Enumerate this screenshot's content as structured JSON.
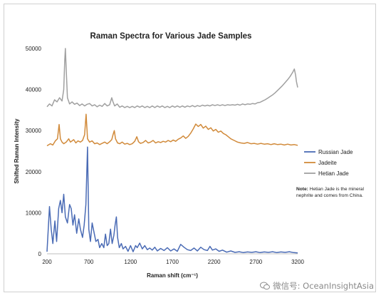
{
  "chart_data": {
    "type": "line",
    "title": "Raman Spectra for Various Jade Samples",
    "xlabel": "Raman shift (cm⁻¹)",
    "ylabel": "Shifted Raman Intensity",
    "xlim": [
      200,
      3200
    ],
    "ylim": [
      0,
      50000
    ],
    "xticks": [
      "200",
      "700",
      "1200",
      "1700",
      "2200",
      "2700",
      "3200"
    ],
    "yticks": [
      "0",
      "10000",
      "20000",
      "30000",
      "40000",
      "50000"
    ],
    "grid": false,
    "legend_position": "right",
    "series": [
      {
        "name": "Russian Jade",
        "color": "#4a6bb5",
        "points": [
          [
            200,
            500
          ],
          [
            230,
            11500
          ],
          [
            250,
            6000
          ],
          [
            270,
            2500
          ],
          [
            295,
            8000
          ],
          [
            315,
            3000
          ],
          [
            340,
            11000
          ],
          [
            360,
            13000
          ],
          [
            380,
            10000
          ],
          [
            400,
            14500
          ],
          [
            420,
            9000
          ],
          [
            445,
            7500
          ],
          [
            470,
            12000
          ],
          [
            490,
            11000
          ],
          [
            510,
            7000
          ],
          [
            530,
            9500
          ],
          [
            555,
            5000
          ],
          [
            580,
            8500
          ],
          [
            600,
            6000
          ],
          [
            625,
            4000
          ],
          [
            645,
            7000
          ],
          [
            665,
            12000
          ],
          [
            685,
            26000
          ],
          [
            700,
            6000
          ],
          [
            720,
            3000
          ],
          [
            740,
            7500
          ],
          [
            760,
            5500
          ],
          [
            785,
            3000
          ],
          [
            810,
            3500
          ],
          [
            830,
            1500
          ],
          [
            855,
            2500
          ],
          [
            880,
            1500
          ],
          [
            900,
            4800
          ],
          [
            920,
            2000
          ],
          [
            940,
            2500
          ],
          [
            960,
            6000
          ],
          [
            980,
            2500
          ],
          [
            1000,
            4500
          ],
          [
            1015,
            7000
          ],
          [
            1030,
            9000
          ],
          [
            1045,
            4000
          ],
          [
            1065,
            1500
          ],
          [
            1090,
            2500
          ],
          [
            1110,
            1200
          ],
          [
            1140,
            1800
          ],
          [
            1170,
            600
          ],
          [
            1200,
            2000
          ],
          [
            1230,
            500
          ],
          [
            1260,
            2000
          ],
          [
            1280,
            1500
          ],
          [
            1310,
            2600
          ],
          [
            1340,
            1200
          ],
          [
            1370,
            2000
          ],
          [
            1400,
            1000
          ],
          [
            1430,
            1400
          ],
          [
            1460,
            900
          ],
          [
            1490,
            1600
          ],
          [
            1520,
            700
          ],
          [
            1560,
            1300
          ],
          [
            1600,
            800
          ],
          [
            1640,
            1500
          ],
          [
            1680,
            700
          ],
          [
            1720,
            1200
          ],
          [
            1760,
            600
          ],
          [
            1800,
            2300
          ],
          [
            1840,
            1600
          ],
          [
            1880,
            1000
          ],
          [
            1920,
            800
          ],
          [
            1960,
            1400
          ],
          [
            2000,
            700
          ],
          [
            2040,
            1600
          ],
          [
            2080,
            1000
          ],
          [
            2120,
            800
          ],
          [
            2150,
            1800
          ],
          [
            2180,
            900
          ],
          [
            2220,
            1200
          ],
          [
            2260,
            600
          ],
          [
            2300,
            900
          ],
          [
            2350,
            400
          ],
          [
            2400,
            700
          ],
          [
            2450,
            350
          ],
          [
            2500,
            500
          ],
          [
            2550,
            300
          ],
          [
            2600,
            450
          ],
          [
            2650,
            350
          ],
          [
            2700,
            500
          ],
          [
            2750,
            300
          ],
          [
            2800,
            450
          ],
          [
            2850,
            350
          ],
          [
            2900,
            500
          ],
          [
            2950,
            300
          ],
          [
            3000,
            450
          ],
          [
            3050,
            350
          ],
          [
            3100,
            500
          ],
          [
            3150,
            300
          ],
          [
            3200,
            200
          ]
        ]
      },
      {
        "name": "Jadeite",
        "color": "#d18a3a",
        "points": [
          [
            200,
            26300
          ],
          [
            240,
            26800
          ],
          [
            270,
            26500
          ],
          [
            300,
            27500
          ],
          [
            325,
            28000
          ],
          [
            345,
            31500
          ],
          [
            360,
            28000
          ],
          [
            380,
            27200
          ],
          [
            400,
            26800
          ],
          [
            430,
            27200
          ],
          [
            460,
            28000
          ],
          [
            480,
            27200
          ],
          [
            500,
            27500
          ],
          [
            520,
            27800
          ],
          [
            545,
            27000
          ],
          [
            570,
            27500
          ],
          [
            600,
            27200
          ],
          [
            625,
            27600
          ],
          [
            650,
            29000
          ],
          [
            668,
            34000
          ],
          [
            685,
            28000
          ],
          [
            710,
            27200
          ],
          [
            740,
            27500
          ],
          [
            770,
            26800
          ],
          [
            800,
            27000
          ],
          [
            830,
            26600
          ],
          [
            860,
            26900
          ],
          [
            890,
            27200
          ],
          [
            920,
            26800
          ],
          [
            950,
            27300
          ],
          [
            975,
            27800
          ],
          [
            990,
            29000
          ],
          [
            1005,
            30000
          ],
          [
            1020,
            28000
          ],
          [
            1045,
            27000
          ],
          [
            1070,
            26800
          ],
          [
            1100,
            27200
          ],
          [
            1130,
            26700
          ],
          [
            1160,
            26900
          ],
          [
            1190,
            26600
          ],
          [
            1220,
            26800
          ],
          [
            1250,
            27400
          ],
          [
            1275,
            28500
          ],
          [
            1295,
            27300
          ],
          [
            1320,
            26900
          ],
          [
            1350,
            27100
          ],
          [
            1380,
            27600
          ],
          [
            1410,
            27000
          ],
          [
            1440,
            27200
          ],
          [
            1470,
            27600
          ],
          [
            1500,
            27000
          ],
          [
            1530,
            27300
          ],
          [
            1560,
            27100
          ],
          [
            1590,
            27400
          ],
          [
            1620,
            27200
          ],
          [
            1650,
            27600
          ],
          [
            1680,
            27300
          ],
          [
            1710,
            27700
          ],
          [
            1740,
            27400
          ],
          [
            1770,
            27900
          ],
          [
            1800,
            28200
          ],
          [
            1830,
            28700
          ],
          [
            1860,
            28100
          ],
          [
            1890,
            28600
          ],
          [
            1920,
            29400
          ],
          [
            1950,
            30400
          ],
          [
            1980,
            31600
          ],
          [
            2010,
            31000
          ],
          [
            2040,
            31500
          ],
          [
            2070,
            30600
          ],
          [
            2100,
            31100
          ],
          [
            2130,
            30300
          ],
          [
            2160,
            30700
          ],
          [
            2190,
            29900
          ],
          [
            2220,
            30300
          ],
          [
            2250,
            29600
          ],
          [
            2280,
            29900
          ],
          [
            2310,
            29300
          ],
          [
            2340,
            29000
          ],
          [
            2370,
            28500
          ],
          [
            2400,
            28000
          ],
          [
            2440,
            27600
          ],
          [
            2480,
            27200
          ],
          [
            2520,
            27000
          ],
          [
            2560,
            26900
          ],
          [
            2600,
            27100
          ],
          [
            2640,
            26800
          ],
          [
            2680,
            26900
          ],
          [
            2720,
            26700
          ],
          [
            2760,
            26900
          ],
          [
            2800,
            26700
          ],
          [
            2840,
            26800
          ],
          [
            2880,
            26600
          ],
          [
            2920,
            26800
          ],
          [
            2960,
            26600
          ],
          [
            3000,
            26700
          ],
          [
            3040,
            26500
          ],
          [
            3080,
            26700
          ],
          [
            3120,
            26500
          ],
          [
            3160,
            26600
          ],
          [
            3200,
            26400
          ]
        ]
      },
      {
        "name": "Hetian Jade",
        "color": "#a0a0a0",
        "points": [
          [
            200,
            35800
          ],
          [
            230,
            36500
          ],
          [
            260,
            36000
          ],
          [
            290,
            37500
          ],
          [
            320,
            37000
          ],
          [
            350,
            38000
          ],
          [
            380,
            37200
          ],
          [
            400,
            40000
          ],
          [
            412,
            47000
          ],
          [
            420,
            50000
          ],
          [
            432,
            44000
          ],
          [
            445,
            38000
          ],
          [
            470,
            36500
          ],
          [
            500,
            37000
          ],
          [
            530,
            36400
          ],
          [
            560,
            36700
          ],
          [
            590,
            36100
          ],
          [
            620,
            36500
          ],
          [
            650,
            36000
          ],
          [
            680,
            36400
          ],
          [
            710,
            36600
          ],
          [
            740,
            36000
          ],
          [
            770,
            36300
          ],
          [
            800,
            35800
          ],
          [
            830,
            36200
          ],
          [
            860,
            35900
          ],
          [
            890,
            36600
          ],
          [
            920,
            36000
          ],
          [
            950,
            36300
          ],
          [
            975,
            38000
          ],
          [
            990,
            37000
          ],
          [
            1010,
            36000
          ],
          [
            1040,
            36500
          ],
          [
            1070,
            35700
          ],
          [
            1100,
            36000
          ],
          [
            1130,
            35600
          ],
          [
            1160,
            35900
          ],
          [
            1190,
            35600
          ],
          [
            1220,
            35900
          ],
          [
            1250,
            35600
          ],
          [
            1280,
            36000
          ],
          [
            1310,
            35700
          ],
          [
            1340,
            36000
          ],
          [
            1370,
            35600
          ],
          [
            1400,
            35900
          ],
          [
            1430,
            35600
          ],
          [
            1460,
            36000
          ],
          [
            1490,
            35600
          ],
          [
            1520,
            36000
          ],
          [
            1550,
            35700
          ],
          [
            1580,
            36000
          ],
          [
            1610,
            35600
          ],
          [
            1640,
            35900
          ],
          [
            1670,
            35600
          ],
          [
            1700,
            36000
          ],
          [
            1730,
            35700
          ],
          [
            1760,
            36000
          ],
          [
            1790,
            35700
          ],
          [
            1820,
            36000
          ],
          [
            1850,
            35700
          ],
          [
            1880,
            36000
          ],
          [
            1910,
            35800
          ],
          [
            1940,
            36100
          ],
          [
            1970,
            35800
          ],
          [
            2000,
            36100
          ],
          [
            2030,
            35900
          ],
          [
            2060,
            36200
          ],
          [
            2090,
            36000
          ],
          [
            2120,
            36200
          ],
          [
            2150,
            36000
          ],
          [
            2180,
            36300
          ],
          [
            2210,
            36100
          ],
          [
            2240,
            36300
          ],
          [
            2270,
            36100
          ],
          [
            2300,
            36300
          ],
          [
            2330,
            36100
          ],
          [
            2360,
            36300
          ],
          [
            2390,
            36200
          ],
          [
            2420,
            36300
          ],
          [
            2450,
            36200
          ],
          [
            2480,
            36400
          ],
          [
            2510,
            36200
          ],
          [
            2540,
            36500
          ],
          [
            2570,
            36300
          ],
          [
            2600,
            36500
          ],
          [
            2630,
            36400
          ],
          [
            2660,
            36600
          ],
          [
            2690,
            36500
          ],
          [
            2720,
            36800
          ],
          [
            2750,
            36900
          ],
          [
            2780,
            37200
          ],
          [
            2810,
            37500
          ],
          [
            2840,
            37900
          ],
          [
            2870,
            38300
          ],
          [
            2900,
            38700
          ],
          [
            2930,
            39200
          ],
          [
            2960,
            39800
          ],
          [
            2990,
            40400
          ],
          [
            3020,
            41000
          ],
          [
            3050,
            41700
          ],
          [
            3080,
            42400
          ],
          [
            3110,
            43200
          ],
          [
            3140,
            44200
          ],
          [
            3160,
            45000
          ],
          [
            3175,
            43500
          ],
          [
            3185,
            42000
          ],
          [
            3200,
            40500
          ]
        ]
      }
    ]
  },
  "note": {
    "label": "Note:",
    "text": "Hetian Jade is the mineral nephrite and comes from China."
  },
  "watermark": {
    "text": "微信号: OceanInsightAsia"
  }
}
